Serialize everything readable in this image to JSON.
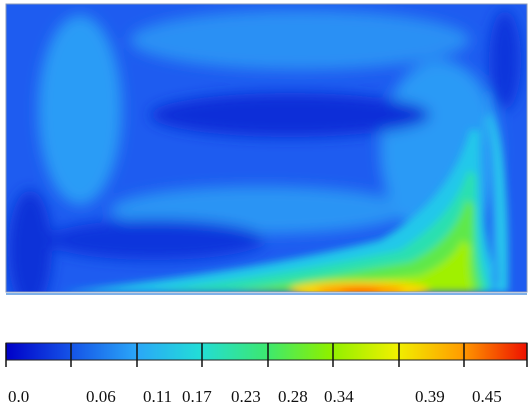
{
  "contour_plot": {
    "field": "velocity-magnitude-contour",
    "colormap": [
      "#0000c8",
      "#0a32dc",
      "#1f66f0",
      "#2aa0f8",
      "#22d2e8",
      "#1ee6b4",
      "#40e860",
      "#7cf000",
      "#c8f000",
      "#ffe000",
      "#ffa000",
      "#ff5a00",
      "#ee1100"
    ]
  },
  "colorbar": {
    "tick_labels": [
      "0.0",
      "0.06",
      "0.11",
      "0.17",
      "0.23",
      "0.28",
      "0.34",
      "0.39",
      "0.45"
    ],
    "min": 0.0,
    "max": 0.45
  }
}
